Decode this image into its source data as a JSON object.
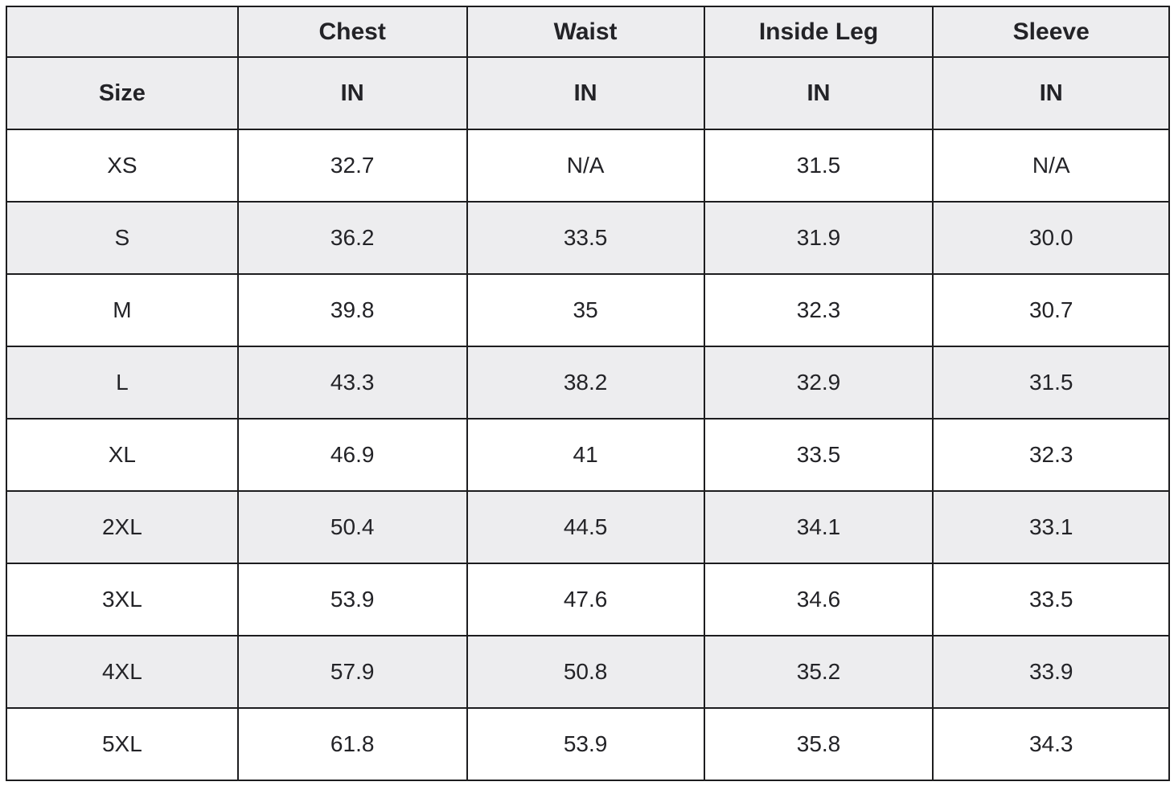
{
  "size_chart": {
    "header_row": [
      "",
      "Chest",
      "Waist",
      "Inside Leg",
      "Sleeve"
    ],
    "unit_row": [
      "Size",
      "IN",
      "IN",
      "IN",
      "IN"
    ],
    "rows": [
      {
        "size": "XS",
        "chest": "32.7",
        "waist": "N/A",
        "inside_leg": "31.5",
        "sleeve": "N/A"
      },
      {
        "size": "S",
        "chest": "36.2",
        "waist": "33.5",
        "inside_leg": "31.9",
        "sleeve": "30.0"
      },
      {
        "size": "M",
        "chest": "39.8",
        "waist": "35",
        "inside_leg": "32.3",
        "sleeve": "30.7"
      },
      {
        "size": "L",
        "chest": "43.3",
        "waist": "38.2",
        "inside_leg": "32.9",
        "sleeve": "31.5"
      },
      {
        "size": "XL",
        "chest": "46.9",
        "waist": "41",
        "inside_leg": "33.5",
        "sleeve": "32.3"
      },
      {
        "size": "2XL",
        "chest": "50.4",
        "waist": "44.5",
        "inside_leg": "34.1",
        "sleeve": "33.1"
      },
      {
        "size": "3XL",
        "chest": "53.9",
        "waist": "47.6",
        "inside_leg": "34.6",
        "sleeve": "33.5"
      },
      {
        "size": "4XL",
        "chest": "57.9",
        "waist": "50.8",
        "inside_leg": "35.2",
        "sleeve": "33.9"
      },
      {
        "size": "5XL",
        "chest": "61.8",
        "waist": "53.9",
        "inside_leg": "35.8",
        "sleeve": "34.3"
      }
    ],
    "colors": {
      "header_and_stripe_background": "#ededef",
      "row_background": "#ffffff",
      "border": "#1d1d1f",
      "text": "#232327"
    }
  }
}
